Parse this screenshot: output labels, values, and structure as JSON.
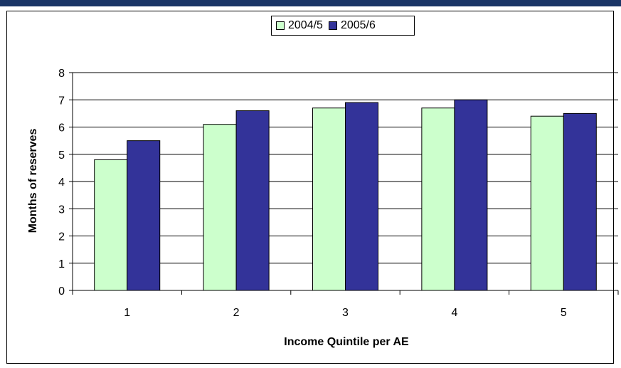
{
  "colors": {
    "header_band": "#1a3566",
    "series_2004": "#ccffcc",
    "series_2005": "#333399"
  },
  "chart_data": {
    "type": "bar",
    "title": "",
    "xlabel": "Income Quintile per AE",
    "ylabel": "Months of reserves",
    "categories": [
      "1",
      "2",
      "3",
      "4",
      "5"
    ],
    "ylim": [
      0,
      8
    ],
    "yticks": [
      0,
      1,
      2,
      3,
      4,
      5,
      6,
      7,
      8
    ],
    "grid": true,
    "legend_position": "top",
    "series": [
      {
        "name": "2004/5",
        "color": "#ccffcc",
        "values": [
          4.8,
          6.1,
          6.7,
          6.7,
          6.4
        ]
      },
      {
        "name": "2005/6",
        "color": "#333399",
        "values": [
          5.5,
          6.6,
          6.9,
          7.0,
          6.5
        ]
      }
    ]
  }
}
